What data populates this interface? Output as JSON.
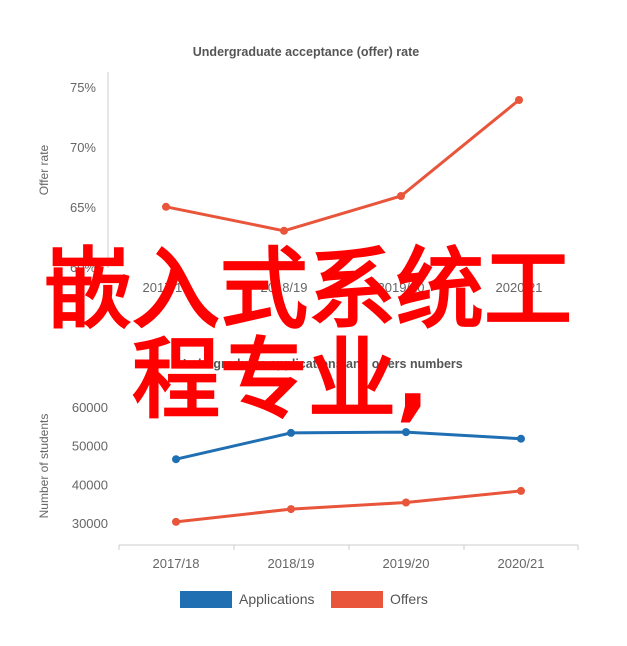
{
  "overlay_text": {
    "line1": "嵌入式系统工",
    "line2": "程专业,",
    "color": "#ff0000"
  },
  "chart_data": [
    {
      "type": "line",
      "title": "Undergraduate acceptance (offer) rate",
      "xlabel": "",
      "ylabel": "Offer rate",
      "categories": [
        "2017/18",
        "2018/19",
        "2019/20",
        "2020/21"
      ],
      "yticks": [
        "60%",
        "65%",
        "70%",
        "75%"
      ],
      "ylim": [
        60,
        76
      ],
      "series": [
        {
          "name": "",
          "color": "#e8553a",
          "values": [
            65.1,
            63.1,
            66.0,
            74.0
          ]
        }
      ],
      "grid": false,
      "legend": "none"
    },
    {
      "type": "line",
      "title": "Undergraduate applications and offers numbers",
      "xlabel": "",
      "ylabel": "Number of students",
      "categories": [
        "2017/18",
        "2018/19",
        "2019/20",
        "2020/21"
      ],
      "yticks": [
        "30000",
        "40000",
        "50000",
        "60000"
      ],
      "ylim": [
        27000,
        63000
      ],
      "series": [
        {
          "name": "Applications",
          "color": "#1f6fb2",
          "values": [
            46500,
            53300,
            53500,
            51800
          ]
        },
        {
          "name": "Offers",
          "color": "#e8553a",
          "values": [
            30300,
            33600,
            35300,
            38300
          ]
        }
      ],
      "grid": false,
      "legend": "bottom"
    }
  ]
}
